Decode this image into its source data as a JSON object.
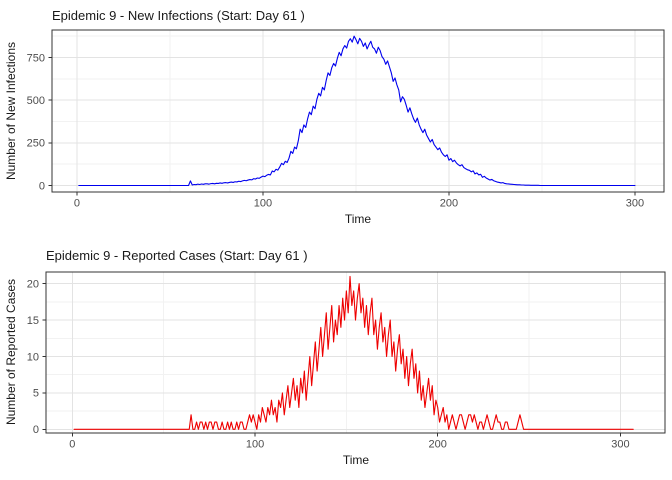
{
  "page": {
    "background": "#ffffff"
  },
  "theme": {
    "panel_border": "#333333",
    "grid_major": "#e3e3e3",
    "grid_minor": "#f2f2f2",
    "tick_color": "#333333",
    "tick_label_color": "#4d4d4d",
    "title_color": "#1a1a1a"
  },
  "chart_data": [
    {
      "type": "line",
      "id": "new-infections",
      "title": "Epidemic 9 - New Infections (Start: Day 61 )",
      "xlabel": "Time",
      "ylabel": "Number of New Infections",
      "line_color": "#0000ee",
      "grid": true,
      "legend": "none",
      "x_start_day": 1,
      "xticks": [
        0,
        100,
        200,
        300
      ],
      "xminor": [
        50,
        150,
        250
      ],
      "yticks": [
        0,
        250,
        500,
        750
      ],
      "yminor": [
        125,
        375,
        625,
        875
      ],
      "xlim": [
        -13.4,
        315.6
      ],
      "ylim": [
        -38,
        911
      ],
      "values": [
        0,
        0,
        0,
        0,
        0,
        0,
        0,
        0,
        0,
        0,
        0,
        0,
        0,
        0,
        0,
        0,
        0,
        0,
        0,
        0,
        0,
        0,
        0,
        0,
        0,
        0,
        0,
        0,
        0,
        0,
        0,
        0,
        0,
        0,
        0,
        0,
        0,
        0,
        0,
        0,
        0,
        0,
        0,
        0,
        0,
        0,
        0,
        0,
        0,
        0,
        0,
        0,
        0,
        0,
        0,
        0,
        0,
        0,
        0,
        0,
        27,
        3,
        6,
        5,
        8,
        6,
        9,
        7,
        10,
        10,
        8,
        11,
        12,
        10,
        13,
        12,
        15,
        13,
        16,
        17,
        15,
        18,
        20,
        18,
        22,
        21,
        25,
        23,
        27,
        30,
        28,
        32,
        35,
        33,
        40,
        38,
        44,
        42,
        49,
        55,
        52,
        60,
        65,
        62,
        85,
        80,
        95,
        90,
        108,
        130,
        122,
        142,
        135,
        160,
        200,
        188,
        225,
        215,
        262,
        330,
        310,
        355,
        340,
        390,
        430,
        415,
        465,
        450,
        505,
        540,
        525,
        575,
        560,
        615,
        660,
        645,
        690,
        715,
        700,
        745,
        780,
        760,
        800,
        820,
        805,
        845,
        860,
        840,
        875,
        855,
        830,
        862,
        845,
        815,
        835,
        800,
        825,
        845,
        810,
        800,
        775,
        810,
        790,
        755,
        740,
        710,
        730,
        695,
        660,
        610,
        630,
        590,
        560,
        490,
        520,
        505,
        470,
        430,
        455,
        420,
        390,
        370,
        395,
        355,
        330,
        310,
        330,
        295,
        275,
        255,
        270,
        240,
        225,
        210,
        220,
        195,
        180,
        170,
        180,
        148,
        158,
        140,
        148,
        132,
        122,
        115,
        122,
        105,
        98,
        92,
        89,
        80,
        86,
        68,
        74,
        62,
        66,
        48,
        54,
        44,
        38,
        32,
        36,
        28,
        24,
        20,
        18,
        15,
        17,
        12,
        10,
        9,
        8,
        7,
        6,
        5,
        4,
        4,
        3,
        3,
        2,
        2,
        2,
        1,
        1,
        1,
        1,
        1,
        0,
        0,
        0,
        0,
        0,
        0,
        0,
        0,
        0,
        0,
        0,
        0,
        0,
        0,
        0,
        0,
        0,
        0,
        0,
        0,
        0,
        0,
        0,
        0,
        0,
        0,
        0,
        0,
        0,
        0,
        0,
        0,
        0,
        0,
        0,
        0,
        0,
        0,
        0,
        0,
        0,
        0,
        0,
        0,
        0,
        0,
        0,
        0,
        0,
        0,
        0,
        0
      ]
    },
    {
      "type": "line",
      "id": "reported-cases",
      "title": "Epidemic 9 - Reported Cases (Start: Day 61 )",
      "xlabel": "Time",
      "ylabel": "Number of Reported Cases",
      "line_color": "#ee0000",
      "grid": true,
      "legend": "none",
      "x_start_day": 1,
      "xticks": [
        0,
        100,
        200,
        300
      ],
      "xminor": [
        50,
        150,
        250
      ],
      "yticks": [
        0,
        5,
        10,
        15,
        20
      ],
      "yminor": [
        2.5,
        7.5,
        12.5,
        17.5
      ],
      "xlim": [
        -14.4,
        324.4
      ],
      "ylim": [
        -0.5,
        21.6
      ],
      "values": [
        0,
        0,
        0,
        0,
        0,
        0,
        0,
        0,
        0,
        0,
        0,
        0,
        0,
        0,
        0,
        0,
        0,
        0,
        0,
        0,
        0,
        0,
        0,
        0,
        0,
        0,
        0,
        0,
        0,
        0,
        0,
        0,
        0,
        0,
        0,
        0,
        0,
        0,
        0,
        0,
        0,
        0,
        0,
        0,
        0,
        0,
        0,
        0,
        0,
        0,
        0,
        0,
        0,
        0,
        0,
        0,
        0,
        0,
        0,
        0,
        0,
        0,
        0,
        0,
        2,
        0,
        0,
        1,
        0,
        1,
        1,
        0,
        1,
        0,
        1,
        1,
        0,
        1,
        1,
        0,
        0,
        1,
        0,
        0,
        1,
        0,
        1,
        0,
        0,
        1,
        0,
        1,
        1,
        0,
        0,
        1,
        2,
        1,
        2,
        1,
        0,
        2,
        1,
        3,
        2,
        1,
        3,
        2,
        4,
        2,
        3,
        1,
        4,
        3,
        5,
        2,
        4,
        6,
        3,
        5,
        7,
        4,
        6,
        3,
        7,
        5,
        8,
        4,
        7,
        10,
        6,
        9,
        12,
        8,
        11,
        14,
        10,
        13,
        16,
        11,
        14,
        17,
        12,
        15,
        13,
        17,
        14,
        18,
        15,
        19,
        16,
        21,
        17,
        19,
        15,
        18,
        20,
        16,
        18,
        14,
        17,
        13,
        16,
        18,
        13,
        15,
        11,
        14,
        16,
        12,
        14,
        10,
        13,
        15,
        10,
        12,
        8,
        11,
        13,
        9,
        11,
        7,
        10,
        6,
        9,
        11,
        7,
        9,
        5,
        8,
        4,
        6,
        3,
        5,
        7,
        4,
        6,
        2,
        4,
        3,
        1,
        2,
        3,
        1,
        2,
        0,
        1,
        2,
        1,
        0,
        1,
        2,
        2,
        1,
        0,
        1,
        2,
        2,
        1,
        2,
        1,
        0,
        1,
        1,
        0,
        1,
        2,
        1,
        0,
        0,
        1,
        2,
        1,
        1,
        0,
        0,
        1,
        1,
        0,
        0,
        0,
        0,
        0,
        1,
        2,
        1,
        0,
        0,
        0,
        0,
        0,
        0,
        0,
        0,
        0,
        0,
        0,
        0,
        0,
        0,
        0,
        0,
        0,
        0,
        0,
        0,
        0,
        0,
        0,
        0,
        0,
        0,
        0,
        0,
        0,
        0,
        0,
        0,
        0,
        0,
        0,
        0,
        0,
        0,
        0,
        0,
        0,
        0,
        0,
        0,
        0,
        0,
        0,
        0,
        0,
        0,
        0,
        0,
        0,
        0,
        0,
        0,
        0,
        0,
        0,
        0,
        0
      ]
    }
  ]
}
